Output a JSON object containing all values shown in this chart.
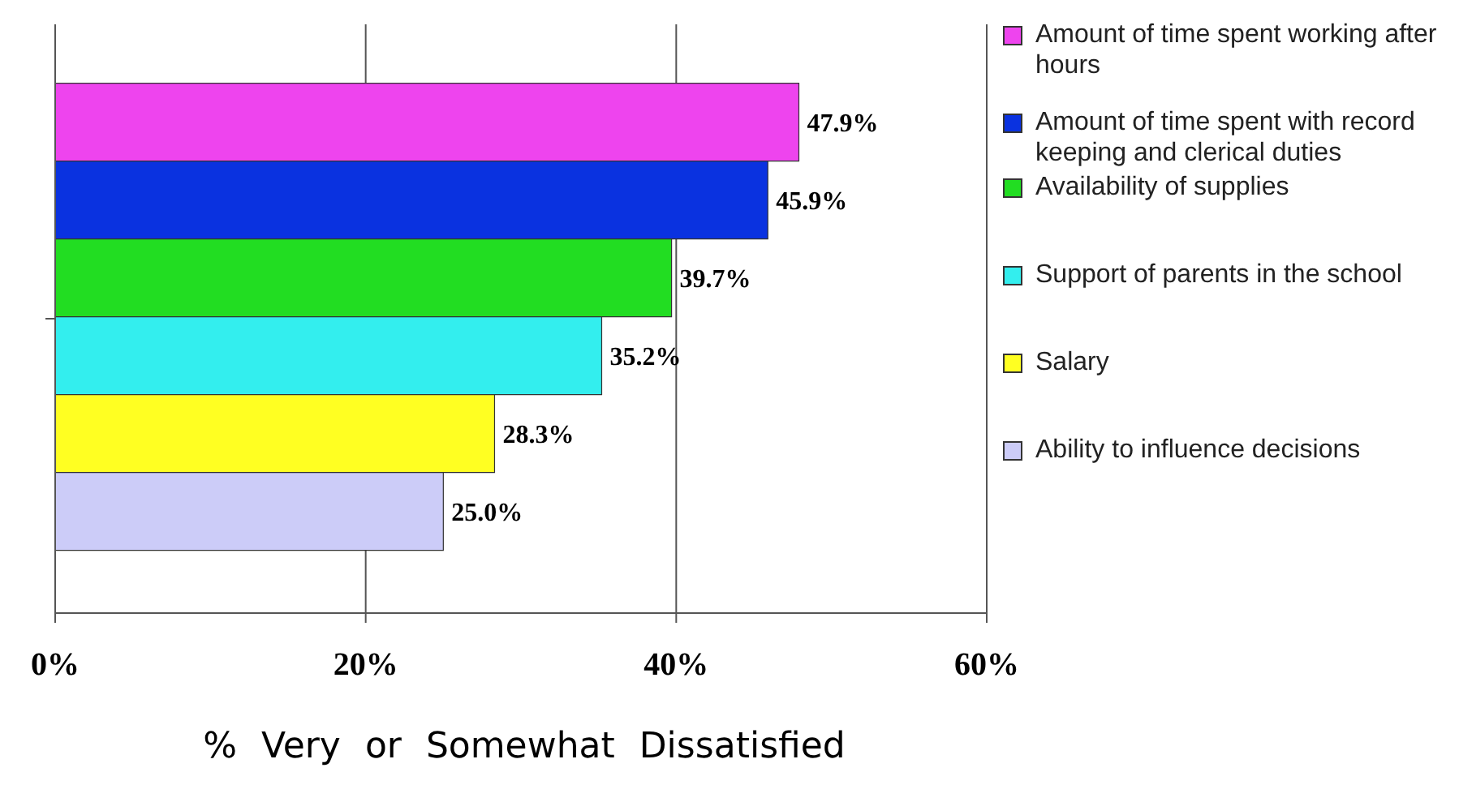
{
  "chart_data": {
    "type": "bar",
    "orientation": "horizontal",
    "categories": [
      null
    ],
    "series": [
      {
        "name": "Amount of time spent working after hours",
        "color": "#ee44ee",
        "values": [
          47.9
        ],
        "value_labels": [
          "47.9%"
        ]
      },
      {
        "name": "Amount of time spent with record keeping and clerical duties",
        "color": "#0a32e0",
        "values": [
          45.9
        ],
        "value_labels": [
          "45.9%"
        ]
      },
      {
        "name": "Availability of supplies",
        "color": "#22dd22",
        "values": [
          39.7
        ],
        "value_labels": [
          "39.7%"
        ]
      },
      {
        "name": "Support of parents in the school",
        "color": "#33eeee",
        "values": [
          35.2
        ],
        "value_labels": [
          "35.2%"
        ]
      },
      {
        "name": "Salary",
        "color": "#ffff22",
        "values": [
          28.3
        ],
        "value_labels": [
          "28.3%"
        ]
      },
      {
        "name": "Ability to influence decisions",
        "color": "#ccccf8",
        "values": [
          25.0
        ],
        "value_labels": [
          "25.0%"
        ]
      }
    ],
    "xlim": [
      0,
      60
    ],
    "xticks": [
      {
        "value": 0,
        "label": "0%"
      },
      {
        "value": 20,
        "label": "20%"
      },
      {
        "value": 40,
        "label": "40%"
      },
      {
        "value": 60,
        "label": "60%"
      }
    ],
    "xlabel": "% Very or Somewhat Dissatisfied",
    "grid": "x",
    "legend": "right"
  }
}
